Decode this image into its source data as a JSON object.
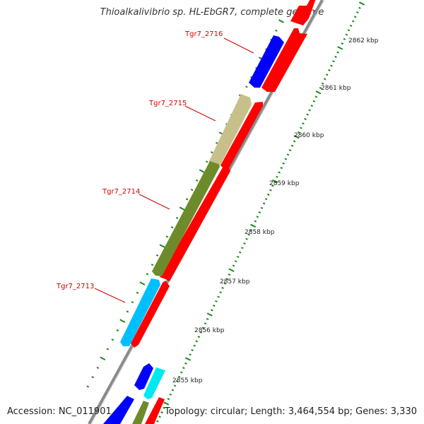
{
  "title": "Thioalkalivibrio sp. HL-EbGR7, complete genome",
  "footer": {
    "accession": "Accession: NC_011901",
    "summary": "Topology: circular; Length: 3,464,554 bp; Genes: 3,330"
  },
  "colors": {
    "forward_strand": "#ff0000",
    "blue_gene": "#0000ff",
    "khaki_gene": "#c8c08a",
    "olive_gene": "#6e8b2b",
    "skyblue_gene": "#00bfff",
    "cyan_gene": "#00e8f0",
    "axis": "#7a7a7a",
    "ticks": "#1a8a1a",
    "gene_label": "#d40000"
  },
  "scale_labels": [
    "2862 kbp",
    "2861 kbp",
    "2860 kbp",
    "2859 kbp",
    "2858 kbp",
    "2857 kbp",
    "2856 kbp",
    "2855 kbp"
  ],
  "gene_labels": [
    "Tgr7_2716",
    "Tgr7_2715",
    "Tgr7_2714",
    "Tgr7_2713"
  ]
}
